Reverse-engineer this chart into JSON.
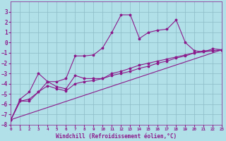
{
  "xlabel": "Windchill (Refroidissement éolien,°C)",
  "background_color": "#b2e0e8",
  "grid_color": "#8cbcc8",
  "line_color": "#8b1a8b",
  "x_min": 0,
  "x_max": 23,
  "y_min": -8,
  "y_max": 4,
  "series1_x": [
    0,
    1,
    2,
    3,
    4,
    5,
    6,
    7,
    8,
    9,
    10,
    11,
    12,
    13,
    14,
    15,
    16,
    17,
    18,
    19,
    20,
    21,
    22,
    23
  ],
  "series1_y": [
    -7.5,
    -5.5,
    -4.8,
    -3.0,
    -3.8,
    -3.8,
    -3.5,
    -1.3,
    -1.3,
    -1.2,
    -0.5,
    1.0,
    2.7,
    2.7,
    0.4,
    1.0,
    1.2,
    1.3,
    2.2,
    0.0,
    -0.8,
    -0.9,
    -0.6,
    -0.7
  ],
  "series2_x": [
    0,
    1,
    2,
    3,
    4,
    5,
    6,
    7,
    8,
    9,
    10,
    11,
    12,
    13,
    14,
    15,
    16,
    17,
    18,
    19,
    20,
    21,
    22,
    23
  ],
  "series2_y": [
    -7.5,
    -5.7,
    -5.7,
    -4.8,
    -3.8,
    -4.3,
    -4.5,
    -3.2,
    -3.5,
    -3.5,
    -3.5,
    -3.0,
    -2.8,
    -2.5,
    -2.2,
    -2.0,
    -1.8,
    -1.6,
    -1.4,
    -1.2,
    -1.0,
    -0.8,
    -0.8,
    -0.7
  ],
  "series3_x": [
    0,
    1,
    2,
    3,
    4,
    5,
    6,
    7,
    8,
    9,
    10,
    11,
    12,
    13,
    14,
    15,
    16,
    17,
    18,
    19,
    20,
    21,
    22,
    23
  ],
  "series3_y": [
    -7.5,
    -5.7,
    -5.5,
    -4.8,
    -4.2,
    -4.5,
    -4.7,
    -4.0,
    -3.8,
    -3.7,
    -3.5,
    -3.2,
    -3.0,
    -2.8,
    -2.5,
    -2.3,
    -2.0,
    -1.8,
    -1.5,
    -1.3,
    -1.0,
    -0.9,
    -0.8,
    -0.7
  ],
  "series4_x": [
    0,
    23
  ],
  "series4_y": [
    -7.5,
    -0.7
  ],
  "yticks": [
    -8,
    -7,
    -6,
    -5,
    -4,
    -3,
    -2,
    -1,
    0,
    1,
    2,
    3
  ],
  "xticks": [
    0,
    1,
    2,
    3,
    4,
    5,
    6,
    7,
    8,
    9,
    10,
    11,
    12,
    13,
    14,
    15,
    16,
    17,
    18,
    19,
    20,
    21,
    22,
    23
  ]
}
